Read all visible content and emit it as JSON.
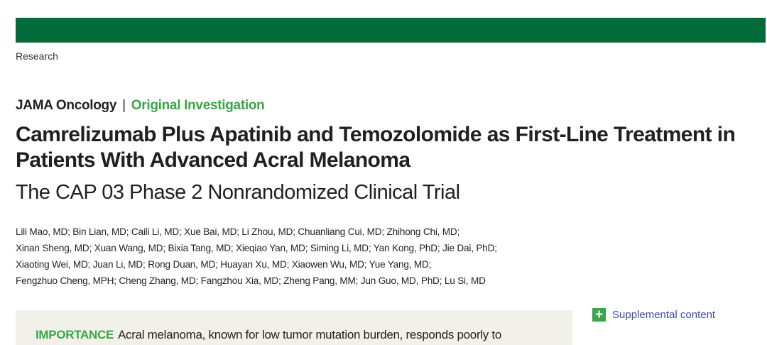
{
  "header": {
    "section": "Research",
    "brand_color": "#036b3a"
  },
  "journal": {
    "name": "JAMA Oncology",
    "separator": "|",
    "article_type": "Original Investigation",
    "accent_color": "#3aa647"
  },
  "article": {
    "title": "Camrelizumab Plus Apatinib and Temozolomide as First-Line Treatment in Patients With Advanced Acral Melanoma",
    "subtitle": "The CAP 03 Phase 2 Nonrandomized Clinical Trial",
    "authors": [
      "Lili Mao, MD; Bin Lian, MD; Caili Li, MD; Xue Bai, MD; Li Zhou, MD; Chuanliang Cui, MD; Zhihong Chi, MD;",
      "Xinan Sheng, MD; Xuan Wang, MD; Bixia Tang, MD; Xieqiao Yan, MD; Siming Li, MD; Yan Kong, PhD; Jie Dai, PhD;",
      "Xiaoting Wei, MD; Juan Li, MD; Rong Duan, MD; Huayan Xu, MD; Xiaowen Wu, MD; Yue Yang, MD;",
      "Fengzhuo Cheng, MPH; Cheng Zhang, MD; Fangzhou Xia, MD; Zheng Pang, MM; Jun Guo, MD, PhD; Lu Si, MD"
    ]
  },
  "abstract": {
    "importance_label": "IMPORTANCE",
    "importance_text": "Acral melanoma, known for low tumor mutation burden, responds poorly to"
  },
  "supplemental": {
    "icon": "plus-icon",
    "label": "Supplemental content"
  }
}
